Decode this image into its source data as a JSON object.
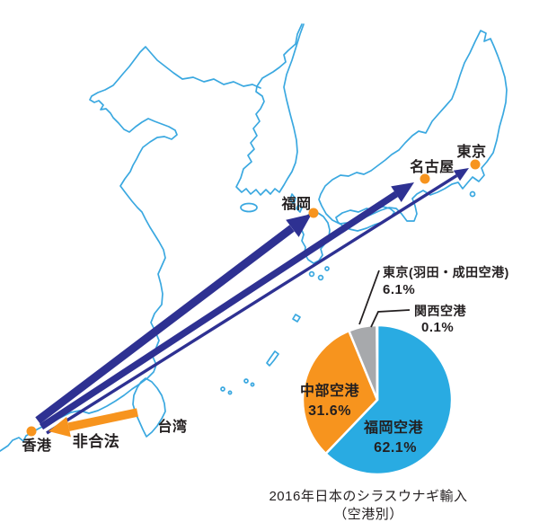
{
  "title": {
    "line1": "2016年日本のシラスウナギ輸入",
    "line2": "（空港別）"
  },
  "map": {
    "cities": [
      {
        "id": "hong-kong",
        "label": "香港"
      },
      {
        "id": "fukuoka",
        "label": "福岡"
      },
      {
        "id": "nagoya",
        "label": "名古屋"
      },
      {
        "id": "tokyo",
        "label": "東京"
      }
    ],
    "regions": [
      {
        "id": "taiwan",
        "label": "台湾"
      }
    ],
    "routes": {
      "legal": [
        {
          "from": "香港",
          "to": "福岡"
        },
        {
          "from": "香港",
          "to": "名古屋"
        },
        {
          "from": "香港",
          "to": "東京"
        }
      ],
      "illegal": {
        "from": "台湾",
        "to": "香港",
        "label": "非合法"
      }
    },
    "colors": {
      "coastline": "#3aa8e0",
      "route_arrow": "#2e3192",
      "illegal_arrow": "#f7941e",
      "city_dot": "#f7941e",
      "label_text": "#231f20"
    }
  },
  "chart_data": {
    "type": "pie",
    "title": "2016年日本のシラスウナギ輸入",
    "subtitle": "（空港別）",
    "labels": [
      "福岡空港",
      "中部空港",
      "東京(羽田・成田空港)",
      "関西空港"
    ],
    "values": [
      62.1,
      31.6,
      6.1,
      0.1
    ],
    "value_labels": [
      "62.1%",
      "31.6%",
      "6.1%",
      "0.1%"
    ],
    "colors": [
      "#29abe2",
      "#f7941e",
      "#a7a9ac",
      "#ffffff"
    ],
    "start_angle_deg": 0,
    "direction": "clockwise",
    "legend_position": "none",
    "label_placement": [
      "inside",
      "inside",
      "outside-top",
      "outside-top"
    ]
  }
}
